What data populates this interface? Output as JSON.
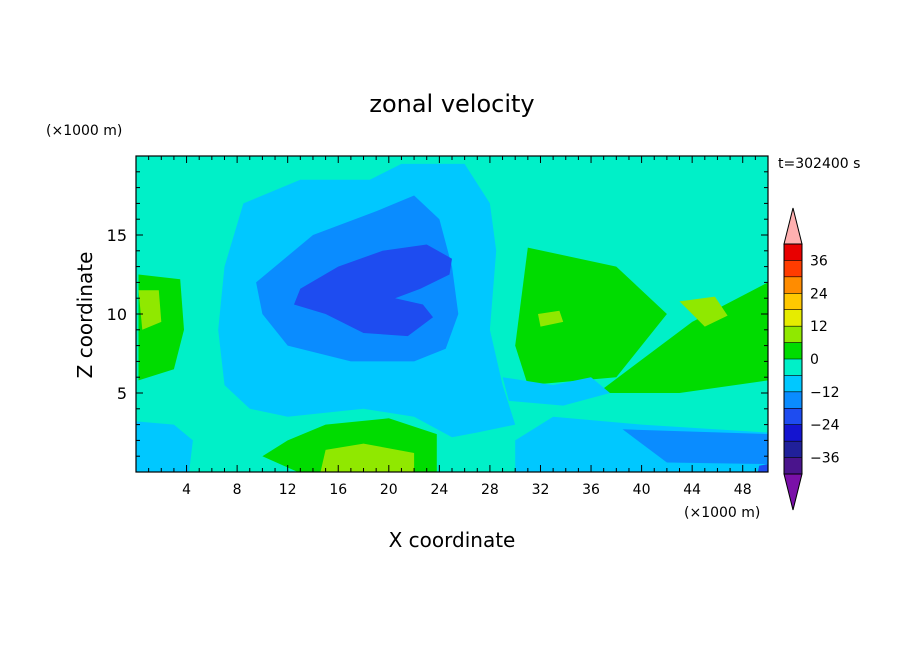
{
  "chart_data": {
    "type": "heatmap",
    "title": "zonal velocity",
    "xlabel": "X coordinate",
    "ylabel": "Z coordinate",
    "x_unit": "(×1000 m)",
    "z_unit": "(×1000 m)",
    "time_label": "t=302400 s",
    "xlim": [
      0,
      50
    ],
    "ylim": [
      0,
      20
    ],
    "x_ticks": [
      4,
      8,
      12,
      16,
      20,
      24,
      28,
      32,
      36,
      40,
      44,
      48
    ],
    "y_ticks": [
      5,
      10,
      15
    ],
    "colorbar": {
      "levels": [
        -42,
        -36,
        -30,
        -24,
        -18,
        -12,
        -6,
        0,
        6,
        12,
        18,
        24,
        30,
        36,
        42
      ],
      "colors": [
        "#7a10a8",
        "#4a148c",
        "#20209a",
        "#1414d0",
        "#1e4cf0",
        "#0a8cff",
        "#00c8ff",
        "#00f0c8",
        "#00dc00",
        "#90e800",
        "#e6ec00",
        "#ffc800",
        "#ff8c00",
        "#ff3c00",
        "#e80000",
        "#ffb0b0"
      ],
      "tick_labels": [
        "36",
        "24",
        "12",
        "0",
        "−12",
        "−24",
        "−36"
      ],
      "tick_values": [
        36,
        24,
        12,
        0,
        -12,
        -24,
        -36
      ]
    },
    "regions": [
      {
        "level": 0,
        "desc": "background",
        "points": [
          [
            0,
            0
          ],
          [
            50,
            0
          ],
          [
            50,
            20
          ],
          [
            0,
            20
          ]
        ]
      },
      {
        "level": 1,
        "points": [
          [
            0.2,
            12.5
          ],
          [
            3.5,
            12.2
          ],
          [
            3.8,
            9
          ],
          [
            3,
            6.5
          ],
          [
            0.2,
            5.8
          ]
        ]
      },
      {
        "level": 1,
        "points": [
          [
            12.8,
            0
          ],
          [
            23.8,
            0
          ],
          [
            23.8,
            2.4
          ],
          [
            20,
            3.4
          ],
          [
            15,
            3
          ],
          [
            12,
            2
          ],
          [
            10,
            1
          ]
        ]
      },
      {
        "level": 1,
        "points": [
          [
            31,
            14.2
          ],
          [
            38,
            13
          ],
          [
            42,
            10
          ],
          [
            38,
            6
          ],
          [
            31,
            5.5
          ],
          [
            30,
            8
          ]
        ]
      },
      {
        "level": 1,
        "points": [
          [
            36.5,
            5
          ],
          [
            44,
            9.5
          ],
          [
            50,
            12
          ],
          [
            50,
            5.8
          ],
          [
            43,
            5
          ]
        ]
      },
      {
        "level": 2,
        "points": [
          [
            0.2,
            11.5
          ],
          [
            1.8,
            11.5
          ],
          [
            2,
            9.5
          ],
          [
            0.5,
            9
          ]
        ]
      },
      {
        "level": 2,
        "points": [
          [
            14.6,
            0
          ],
          [
            22,
            0
          ],
          [
            22,
            1.2
          ],
          [
            18,
            1.8
          ],
          [
            15,
            1.4
          ]
        ]
      },
      {
        "level": 2,
        "points": [
          [
            43,
            10.8
          ],
          [
            45.8,
            11.1
          ],
          [
            46.8,
            9.9
          ],
          [
            45,
            9.2
          ]
        ]
      },
      {
        "level": 2,
        "points": [
          [
            31.8,
            10
          ],
          [
            33.5,
            10.2
          ],
          [
            33.8,
            9.5
          ],
          [
            32,
            9.2
          ]
        ]
      },
      {
        "level": -1,
        "points": [
          [
            8.5,
            17
          ],
          [
            13,
            18.5
          ],
          [
            18.5,
            18.5
          ],
          [
            21,
            19.5
          ],
          [
            26,
            19.5
          ],
          [
            28,
            17
          ],
          [
            28.5,
            14
          ],
          [
            28,
            9
          ],
          [
            29,
            5.5
          ],
          [
            30,
            3
          ],
          [
            27,
            2.5
          ],
          [
            25,
            2.2
          ],
          [
            22,
            3.5
          ],
          [
            18,
            4
          ],
          [
            12,
            3.5
          ],
          [
            9,
            4
          ],
          [
            7,
            5.5
          ],
          [
            6.5,
            9
          ],
          [
            7,
            13
          ]
        ]
      },
      {
        "level": -1,
        "points": [
          [
            0,
            3.2
          ],
          [
            3,
            3
          ],
          [
            4.5,
            2
          ],
          [
            4.2,
            0
          ],
          [
            0,
            0
          ]
        ]
      },
      {
        "level": -1,
        "points": [
          [
            30,
            0
          ],
          [
            50,
            0
          ],
          [
            50,
            2.5
          ],
          [
            40,
            3
          ],
          [
            33,
            3.5
          ],
          [
            30,
            2
          ]
        ]
      },
      {
        "level": -1,
        "points": [
          [
            29,
            6
          ],
          [
            33,
            5.5
          ],
          [
            36,
            6
          ],
          [
            37.5,
            5
          ],
          [
            33.8,
            4.2
          ],
          [
            29.5,
            4.5
          ]
        ]
      },
      {
        "level": -2,
        "points": [
          [
            14,
            15
          ],
          [
            19,
            16.5
          ],
          [
            22,
            17.5
          ],
          [
            24,
            16
          ],
          [
            25,
            13
          ],
          [
            25.5,
            10
          ],
          [
            24.5,
            7.8
          ],
          [
            22,
            7
          ],
          [
            17,
            7
          ],
          [
            12,
            8
          ],
          [
            10,
            10
          ],
          [
            9.5,
            12
          ]
        ]
      },
      {
        "level": -2,
        "points": [
          [
            38.5,
            2.7
          ],
          [
            50,
            2.4
          ],
          [
            50,
            0.5
          ],
          [
            42,
            0.6
          ]
        ]
      },
      {
        "level": -3,
        "points": [
          [
            13,
            11.6
          ],
          [
            16,
            13
          ],
          [
            19.5,
            14
          ],
          [
            23,
            14.4
          ],
          [
            25,
            13.5
          ],
          [
            24.8,
            12.5
          ],
          [
            22.5,
            11.6
          ],
          [
            20.5,
            11
          ],
          [
            22.7,
            10.6
          ],
          [
            23.5,
            9.8
          ],
          [
            21.5,
            8.6
          ],
          [
            18,
            8.8
          ],
          [
            15,
            10
          ],
          [
            12.5,
            10.6
          ]
        ]
      },
      {
        "level": -3,
        "points": [
          [
            49.3,
            0.4
          ],
          [
            50,
            0.5
          ],
          [
            50,
            0
          ],
          [
            49.2,
            0
          ]
        ]
      }
    ]
  }
}
